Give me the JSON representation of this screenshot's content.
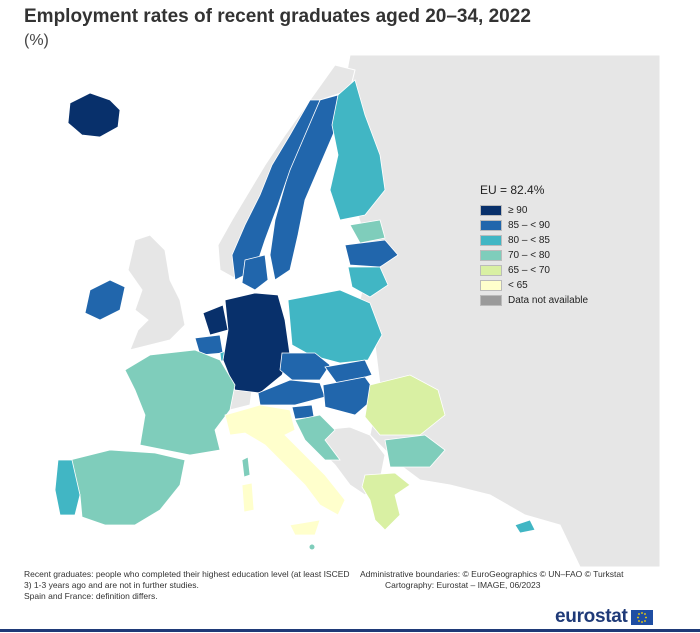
{
  "title": "Employment rates of recent graduates aged 20–34, 2022",
  "subtitle": "(%)",
  "legend": {
    "eu": "EU = 82.4%",
    "items": [
      {
        "label": "≥ 90",
        "color": "#08306b"
      },
      {
        "label": "85 – < 90",
        "color": "#2166ac"
      },
      {
        "label": "80 – < 85",
        "color": "#41b6c4"
      },
      {
        "label": "70 – < 80",
        "color": "#7fcdbb"
      },
      {
        "label": "65 – < 70",
        "color": "#d9f0a3"
      },
      {
        "label": "< 65",
        "color": "#ffffcc"
      },
      {
        "label": "Data not available",
        "color": "#9a9a9a"
      }
    ]
  },
  "footer": {
    "note1": "Recent graduates: people who completed their highest education level (at least ISCED 3) 1-3 years ago and are not in further studies.",
    "note2": "Spain and France: definition differs.",
    "admin": "Administrative boundaries: © EuroGeographics © UN–FAO © Turkstat",
    "carto": "Cartography: Eurostat – IMAGE, 06/2023"
  },
  "brand": "eurostat",
  "colors": {
    "sea": "#ffffff",
    "non_eu": "#e6e6e6",
    "ge90": "#08306b",
    "c85": "#2166ac",
    "c80": "#41b6c4",
    "c70": "#7fcdbb",
    "c65": "#d9f0a3",
    "lt65": "#ffffcc"
  }
}
